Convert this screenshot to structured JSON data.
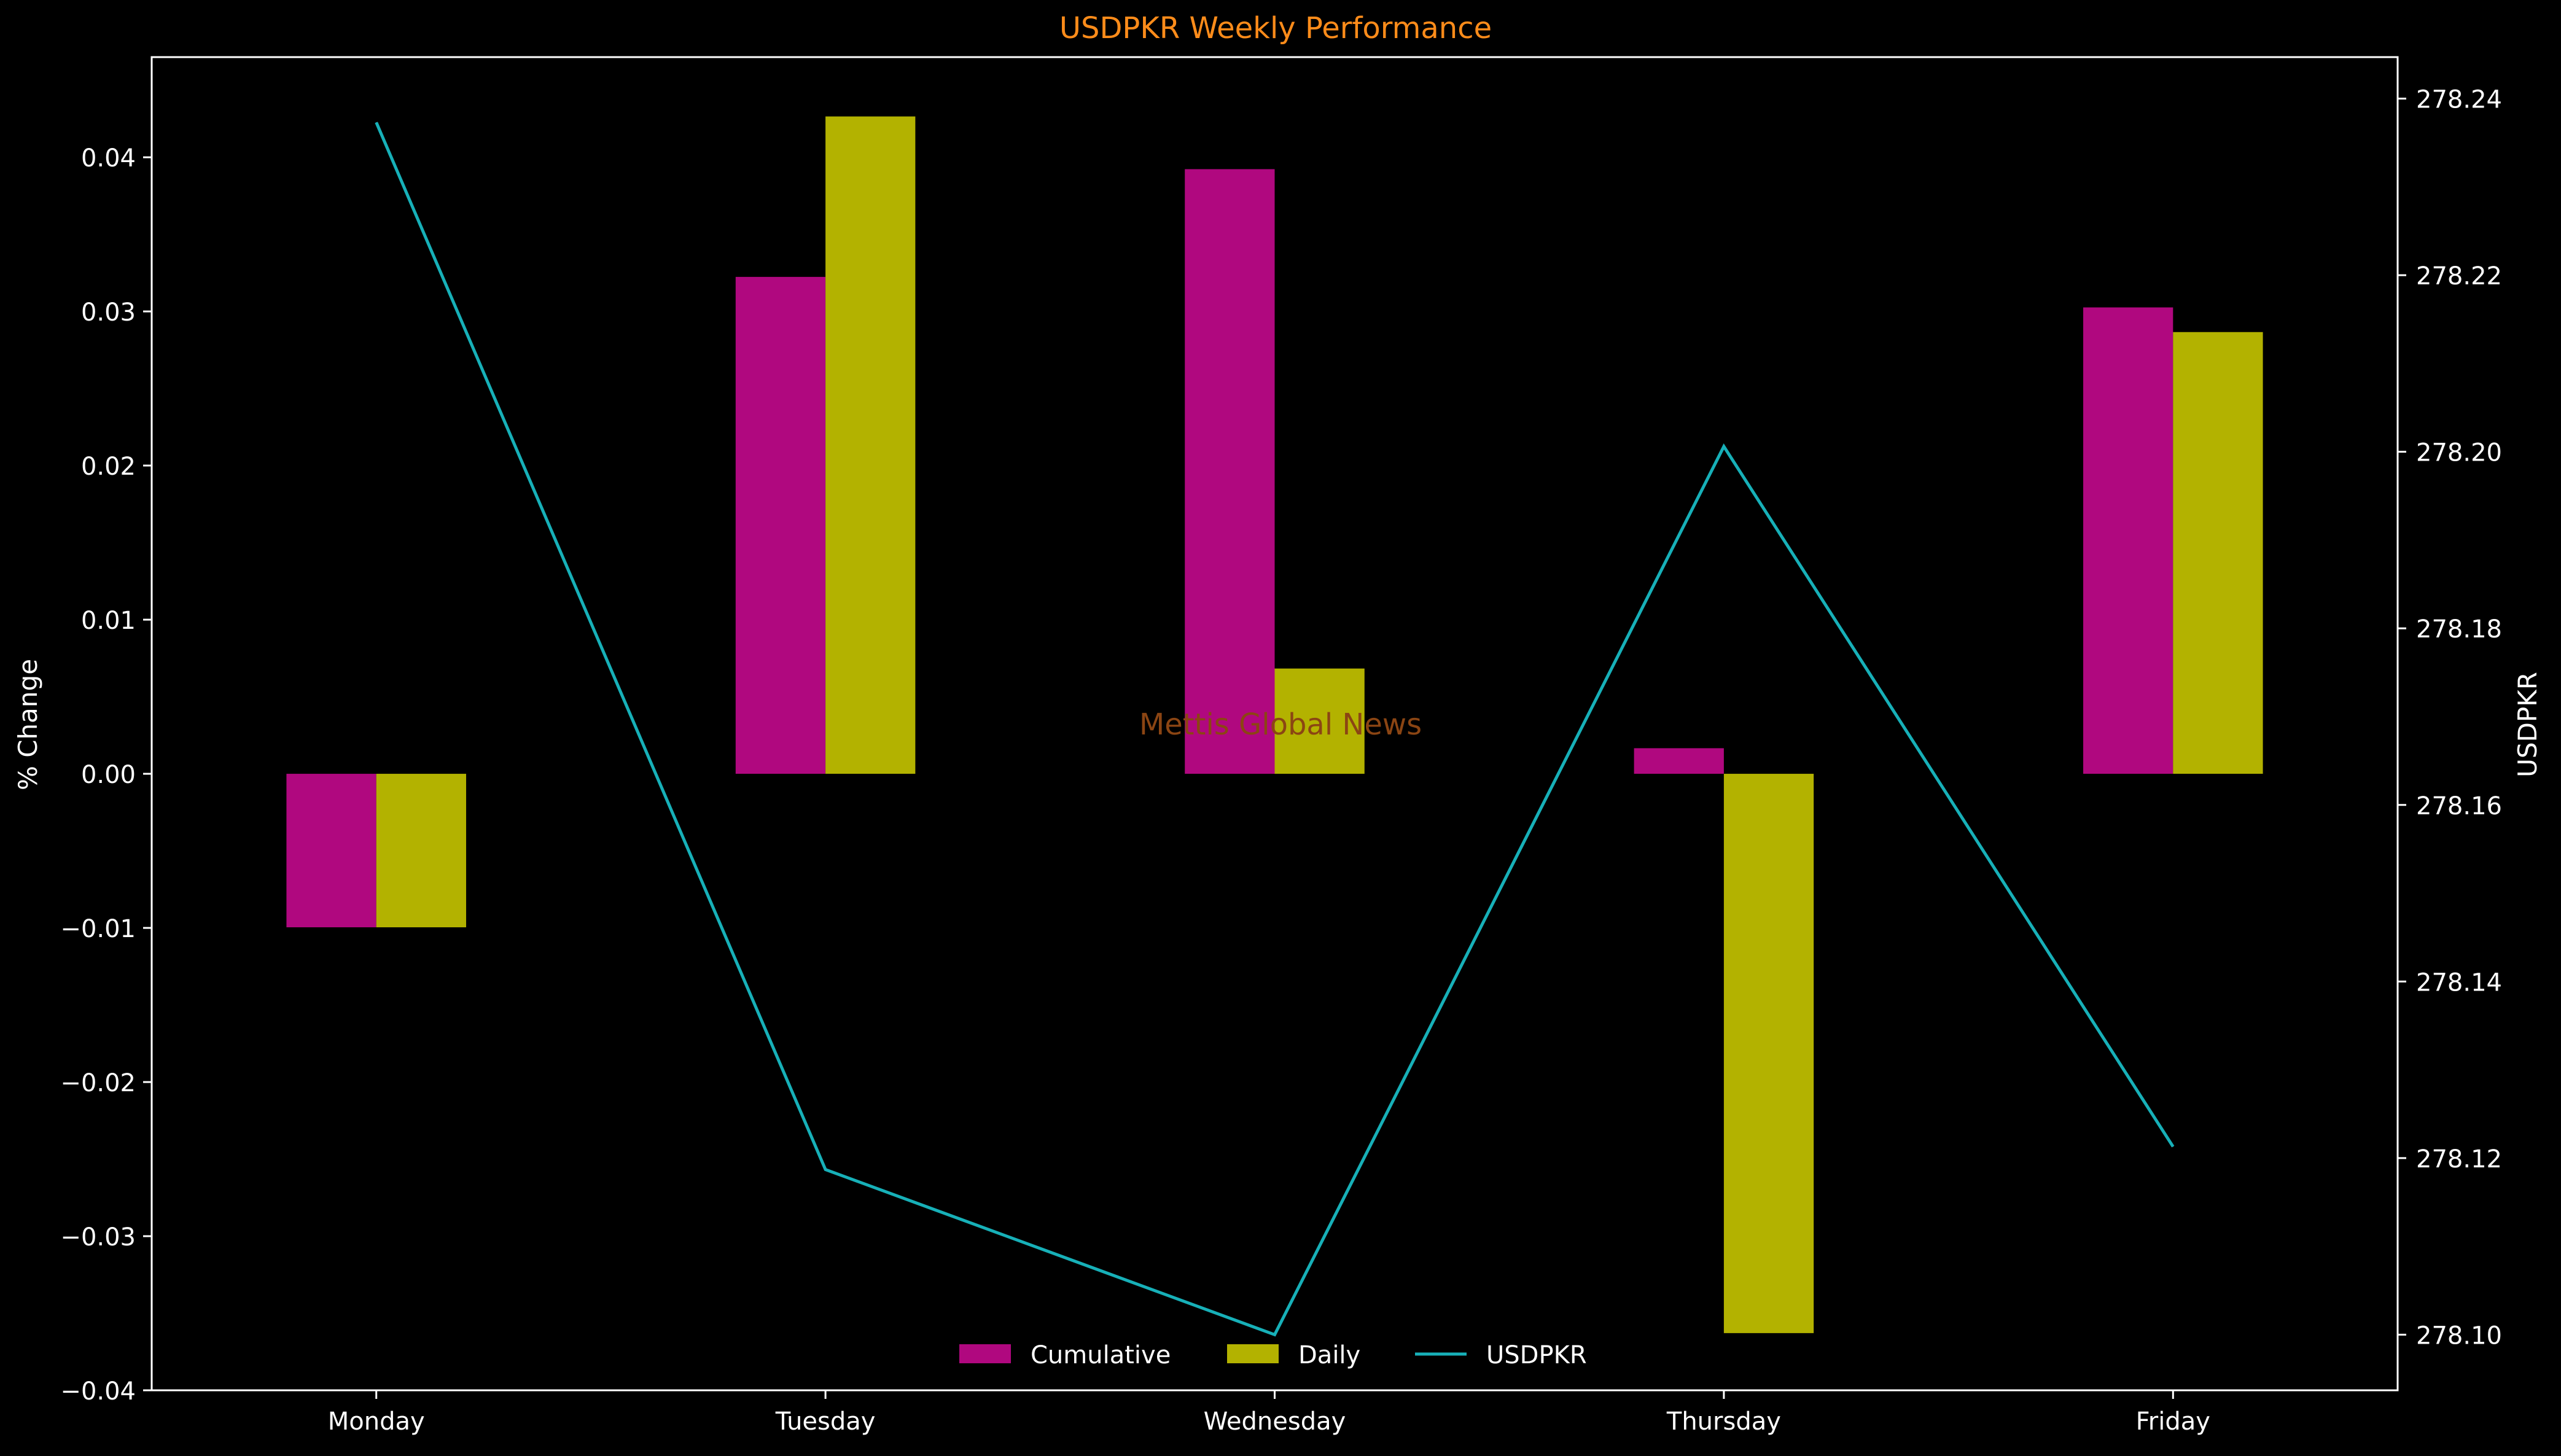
{
  "chart_data": {
    "type": "bar",
    "title": "USDPKR Weekly Performance",
    "watermark": "Mettis Global News",
    "categories": [
      "Monday",
      "Tuesday",
      "Wednesday",
      "Thursday",
      "Friday"
    ],
    "series": [
      {
        "name": "Cumulative",
        "type": "bar",
        "axis": "left",
        "color": "#b0087f",
        "values": [
          -0.00996,
          0.03224,
          0.03923,
          0.00166,
          0.03026
        ]
      },
      {
        "name": "Daily",
        "type": "bar",
        "axis": "left",
        "color": "#b3b200",
        "values": [
          -0.00996,
          0.04265,
          0.00683,
          -0.03629,
          0.02866
        ]
      },
      {
        "name": "USDPKR",
        "type": "line",
        "axis": "right",
        "color": "#17b0b8",
        "values": [
          278.2373,
          278.1187,
          278.1,
          278.2006,
          278.1213
        ]
      }
    ],
    "ylabel": "% Change",
    "y2label": "USDPKR",
    "ylim": [
      -0.04,
      0.0465
    ],
    "y2lim": [
      278.0937,
      278.2447
    ],
    "yticks": [
      "0.04",
      "0.03",
      "0.02",
      "0.01",
      "0.00",
      "−0.01",
      "−0.02",
      "−0.03",
      "−0.04"
    ],
    "yticks_values": [
      0.04,
      0.03,
      0.02,
      0.01,
      0.0,
      -0.01,
      -0.02,
      -0.03,
      -0.04
    ],
    "y2ticks": [
      "278.24",
      "278.22",
      "278.20",
      "278.18",
      "278.16",
      "278.14",
      "278.12",
      "278.10"
    ],
    "y2ticks_values": [
      278.24,
      278.22,
      278.2,
      278.18,
      278.16,
      278.14,
      278.12,
      278.1
    ],
    "grid": false,
    "legend": {
      "placement": "bottom-center",
      "entries": [
        "Cumulative",
        "Daily",
        "USDPKR"
      ]
    },
    "colors": {
      "background": "#000000",
      "title": "#ff8c1a",
      "text": "#ffffff",
      "watermark": "#8b4513"
    }
  }
}
